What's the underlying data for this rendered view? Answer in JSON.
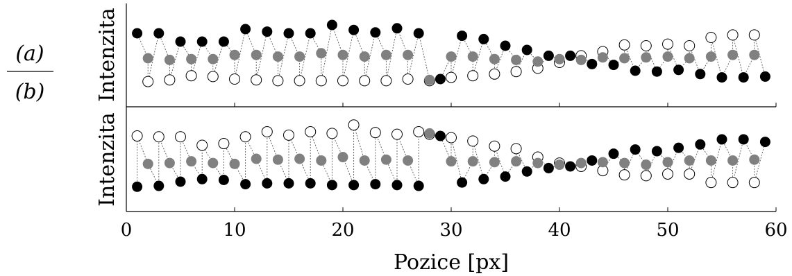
{
  "fraction": {
    "numerator": "(a)",
    "denominator": "(b)"
  },
  "chart_data": {
    "type": "scatter",
    "xlabel": "Pozice [px]",
    "xlim": [
      0,
      60
    ],
    "xticks": [
      "0",
      "10",
      "20",
      "30",
      "40",
      "50",
      "60"
    ],
    "colors": {
      "dark": "#000000",
      "mid": "#808080",
      "light": "#ffffff",
      "connector": "#555555"
    },
    "panels": [
      {
        "label": "(a)",
        "ylabel": "Intenzita",
        "ylim": [
          0,
          1
        ],
        "series": [
          {
            "marker": "black-filled",
            "x": [
              1,
              3,
              5,
              7,
              9,
              11,
              13,
              15,
              17,
              19,
              21,
              23,
              25,
              27,
              29,
              31,
              33,
              35,
              37,
              39,
              41,
              43,
              45,
              47,
              49,
              51,
              53,
              55,
              57,
              59
            ],
            "y": [
              0.75,
              0.75,
              0.65,
              0.65,
              0.65,
              0.8,
              0.77,
              0.75,
              0.75,
              0.85,
              0.79,
              0.76,
              0.81,
              0.75,
              0.2,
              0.72,
              0.68,
              0.6,
              0.55,
              0.48,
              0.48,
              0.38,
              0.37,
              0.3,
              0.29,
              0.31,
              0.26,
              0.22,
              0.22,
              0.23
            ]
          },
          {
            "marker": "gray-filled",
            "x": [
              2,
              4,
              6,
              8,
              10,
              12,
              14,
              16,
              18,
              20,
              22,
              24,
              26,
              28,
              30,
              32,
              34,
              36,
              38,
              40,
              42,
              44,
              46,
              48,
              50,
              52,
              54,
              56,
              58
            ],
            "y": [
              0.45,
              0.43,
              0.44,
              0.44,
              0.49,
              0.49,
              0.47,
              0.47,
              0.51,
              0.49,
              0.47,
              0.49,
              0.49,
              0.19,
              0.47,
              0.47,
              0.44,
              0.43,
              0.41,
              0.44,
              0.43,
              0.46,
              0.45,
              0.46,
              0.47,
              0.45,
              0.47,
              0.49,
              0.49
            ]
          },
          {
            "marker": "white-open",
            "x": [
              2,
              4,
              6,
              8,
              10,
              12,
              14,
              16,
              18,
              20,
              22,
              24,
              26,
              28,
              30,
              32,
              34,
              36,
              38,
              40,
              42,
              44,
              46,
              48,
              50,
              52,
              54,
              56,
              58
            ],
            "y": [
              0.17,
              0.19,
              0.24,
              0.23,
              0.2,
              0.19,
              0.18,
              0.18,
              0.18,
              0.18,
              0.18,
              0.18,
              0.2,
              0.18,
              0.22,
              0.24,
              0.26,
              0.29,
              0.33,
              0.4,
              0.48,
              0.53,
              0.61,
              0.6,
              0.62,
              0.6,
              0.7,
              0.73,
              0.73
            ]
          }
        ]
      },
      {
        "label": "(b)",
        "ylabel": "Intenzita",
        "ylim": [
          0,
          1
        ],
        "series": [
          {
            "marker": "black-filled",
            "x": [
              1,
              3,
              5,
              7,
              9,
              11,
              13,
              15,
              17,
              19,
              21,
              23,
              25,
              27,
              29,
              31,
              33,
              35,
              37,
              39,
              41,
              43,
              45,
              47,
              49,
              51,
              53,
              55,
              57,
              59
            ],
            "y": [
              0.17,
              0.18,
              0.23,
              0.26,
              0.25,
              0.2,
              0.21,
              0.21,
              0.21,
              0.19,
              0.19,
              0.2,
              0.19,
              0.18,
              0.77,
              0.22,
              0.26,
              0.29,
              0.35,
              0.39,
              0.41,
              0.48,
              0.56,
              0.61,
              0.59,
              0.63,
              0.67,
              0.73,
              0.73,
              0.7
            ]
          },
          {
            "marker": "gray-filled",
            "x": [
              2,
              4,
              6,
              8,
              10,
              12,
              14,
              16,
              18,
              20,
              22,
              24,
              26,
              28,
              30,
              32,
              34,
              36,
              38,
              40,
              42,
              44,
              46,
              48,
              50,
              52,
              54,
              56,
              58
            ],
            "y": [
              0.44,
              0.45,
              0.47,
              0.45,
              0.44,
              0.5,
              0.49,
              0.5,
              0.48,
              0.52,
              0.48,
              0.49,
              0.48,
              0.8,
              0.47,
              0.47,
              0.46,
              0.47,
              0.45,
              0.43,
              0.45,
              0.46,
              0.45,
              0.43,
              0.46,
              0.48,
              0.48,
              0.48,
              0.49
            ]
          },
          {
            "marker": "white-open",
            "x": [
              1,
              3,
              5,
              7,
              9,
              11,
              13,
              15,
              17,
              19,
              21,
              23,
              25,
              27,
              28,
              30,
              32,
              34,
              36,
              38,
              40,
              42,
              44,
              46,
              48,
              50,
              52,
              54,
              56,
              58
            ],
            "y": [
              0.77,
              0.76,
              0.76,
              0.66,
              0.68,
              0.76,
              0.82,
              0.78,
              0.82,
              0.8,
              0.9,
              0.81,
              0.79,
              0.82,
              0.79,
              0.75,
              0.71,
              0.65,
              0.62,
              0.52,
              0.45,
              0.41,
              0.36,
              0.31,
              0.3,
              0.32,
              0.32,
              0.22,
              0.22,
              0.22
            ]
          }
        ]
      }
    ]
  }
}
